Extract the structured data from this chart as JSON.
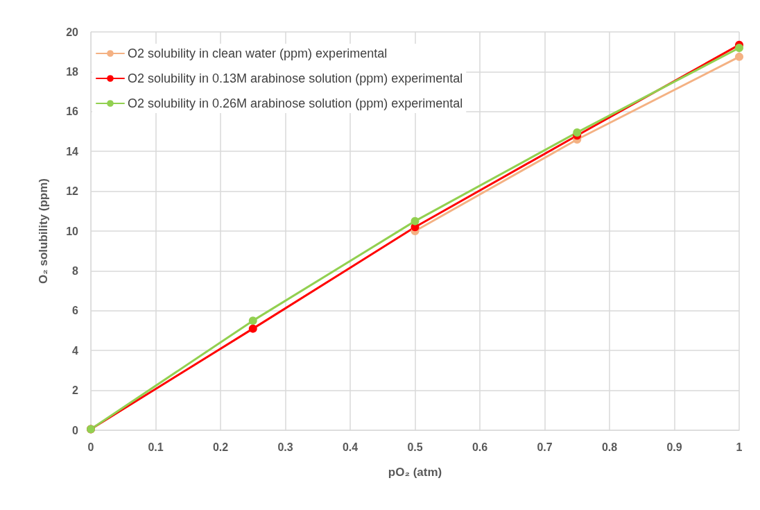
{
  "chart_data": {
    "type": "line",
    "xlabel": "pO₂ (atm)",
    "ylabel": "O₂ solubility (ppm)",
    "x": [
      0,
      0.25,
      0.5,
      0.75,
      1
    ],
    "series": [
      {
        "name": "O2 solubility in clean water (ppm) experimental",
        "color": "#f4b183",
        "values": [
          null,
          null,
          10.0,
          14.6,
          18.75
        ]
      },
      {
        "name": "O2 solubility in 0.13M arabinose solution (ppm) experimental",
        "color": "#ff0000",
        "values": [
          0.05,
          5.1,
          10.2,
          14.8,
          19.35
        ]
      },
      {
        "name": "O2 solubility in 0.26M arabinose solution (ppm) experimental",
        "color": "#92d050",
        "values": [
          0.05,
          5.5,
          10.5,
          14.95,
          19.2
        ]
      }
    ],
    "xlim": [
      0,
      1
    ],
    "xticks": [
      0,
      0.1,
      0.2,
      0.3,
      0.4,
      0.5,
      0.6,
      0.7,
      0.8,
      0.9,
      1
    ],
    "ylim": [
      0,
      20
    ],
    "yticks": [
      0,
      2,
      4,
      6,
      8,
      10,
      12,
      14,
      16,
      18,
      20
    ],
    "grid": true,
    "legend": "top left",
    "marker": "circle",
    "line_style": "solid"
  }
}
